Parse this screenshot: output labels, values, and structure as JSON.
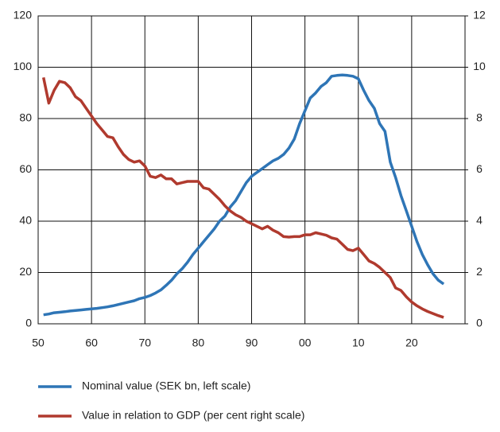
{
  "chart_data": {
    "type": "line",
    "grid": true,
    "legend": "bottom",
    "x": [
      51,
      52,
      53,
      54,
      55,
      56,
      57,
      58,
      59,
      60,
      61,
      62,
      63,
      64,
      65,
      66,
      67,
      68,
      69,
      70,
      71,
      72,
      73,
      74,
      75,
      76,
      77,
      78,
      79,
      80,
      81,
      82,
      83,
      84,
      85,
      86,
      87,
      88,
      89,
      90,
      91,
      92,
      93,
      94,
      95,
      96,
      97,
      98,
      99,
      100,
      101,
      102,
      103,
      104,
      105,
      106,
      107,
      108,
      109,
      110,
      111,
      112,
      113,
      114,
      115,
      116,
      117,
      118,
      119,
      120,
      121,
      122,
      123,
      124,
      125,
      126
    ],
    "xlim": [
      50,
      130
    ],
    "xticks": [
      50,
      60,
      70,
      80,
      90,
      {
        "value": 100,
        "label": "00"
      },
      {
        "value": 110,
        "label": "10"
      },
      {
        "value": 120,
        "label": "20"
      }
    ],
    "ylim": [
      0,
      120
    ],
    "yticks": [
      0,
      20,
      40,
      60,
      80,
      100,
      120
    ],
    "y2lim": [
      0,
      12
    ],
    "y2ticks": [
      0,
      2,
      4,
      6,
      8,
      10,
      12
    ],
    "series": [
      {
        "name": "Nominal value (SEK bn, left scale)",
        "color": "#2e75b6",
        "values": [
          3.5,
          3.8,
          4.3,
          4.5,
          4.7,
          5,
          5.2,
          5.4,
          5.6,
          5.8,
          6,
          6.3,
          6.6,
          7,
          7.5,
          8,
          8.5,
          9,
          9.8,
          10.3,
          11,
          12,
          13.2,
          15,
          17,
          19.5,
          21.5,
          24,
          27,
          29.5,
          32,
          34.5,
          37,
          40,
          42,
          45.5,
          48,
          51.5,
          55,
          57.5,
          59,
          60.5,
          62,
          63.5,
          64.5,
          66,
          68.5,
          72,
          78,
          83,
          88,
          90,
          92.5,
          94,
          96.5,
          96.8,
          97,
          96.8,
          96.5,
          95.5,
          91,
          87,
          84,
          78,
          75,
          63,
          57,
          50,
          44,
          38,
          32,
          27,
          23,
          19.5,
          17,
          15.5
        ]
      },
      {
        "name": "Value in relation to GDP (per cent right scale)",
        "color": "#b03a2e",
        "axis": "y2",
        "values": [
          9.6,
          8.6,
          9.1,
          9.45,
          9.4,
          9.2,
          8.85,
          8.7,
          8.4,
          8.1,
          7.8,
          7.55,
          7.3,
          7.25,
          6.9,
          6.6,
          6.4,
          6.3,
          6.35,
          6.15,
          5.75,
          5.7,
          5.8,
          5.65,
          5.65,
          5.45,
          5.5,
          5.55,
          5.55,
          5.55,
          5.3,
          5.25,
          5.05,
          4.85,
          4.6,
          4.4,
          4.25,
          4.15,
          4.0,
          3.9,
          3.8,
          3.7,
          3.8,
          3.65,
          3.55,
          3.4,
          3.38,
          3.4,
          3.4,
          3.47,
          3.47,
          3.55,
          3.5,
          3.45,
          3.35,
          3.3,
          3.1,
          2.9,
          2.85,
          2.95,
          2.7,
          2.45,
          2.35,
          2.2,
          2.0,
          1.8,
          1.4,
          1.3,
          1.05,
          0.85,
          0.7,
          0.58,
          0.48,
          0.4,
          0.32,
          0.25
        ]
      }
    ]
  }
}
